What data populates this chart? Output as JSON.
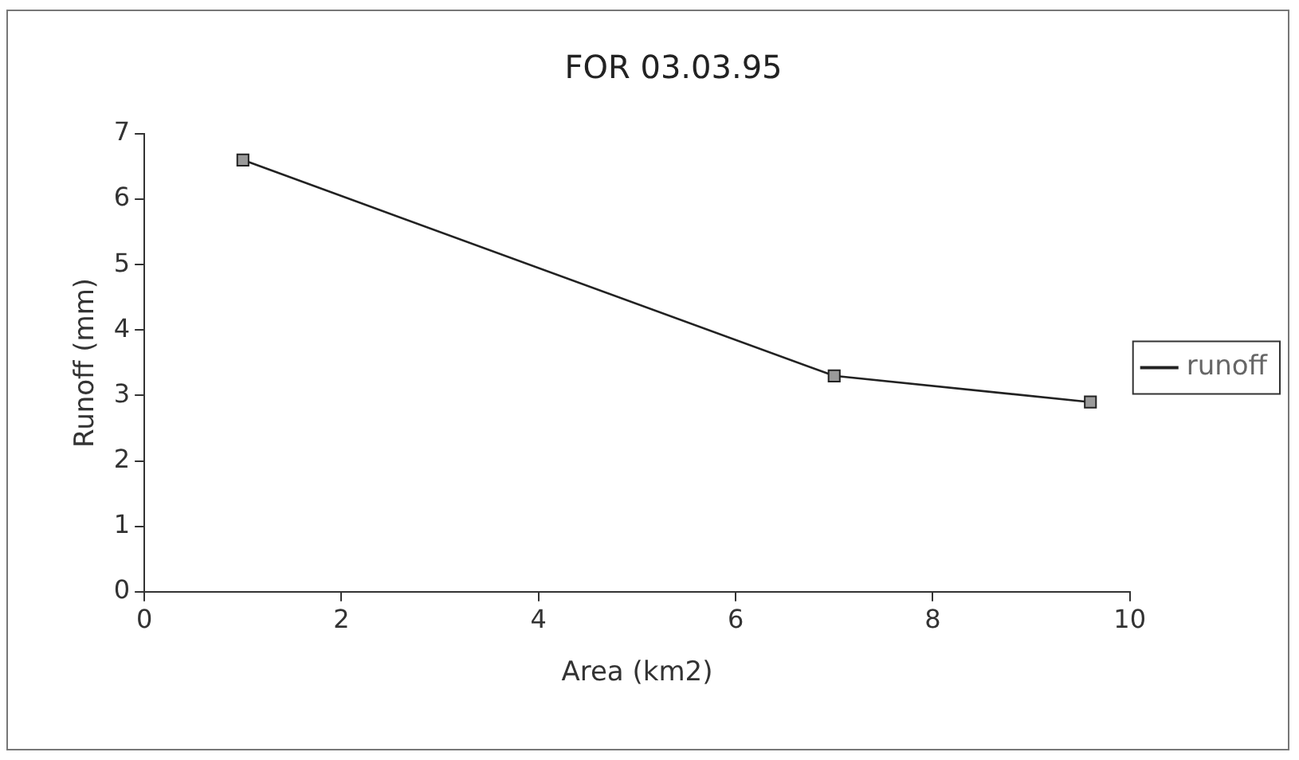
{
  "chart_data": {
    "type": "line",
    "title": "FOR 03.03.95",
    "xlabel": "Area (km2)",
    "ylabel": "Runoff (mm)",
    "x": [
      1,
      7,
      9.6
    ],
    "series": [
      {
        "name": "runoff",
        "color": "#222222",
        "values": [
          6.6,
          3.3,
          2.9
        ]
      }
    ],
    "xlim": [
      0,
      10
    ],
    "xticks": [
      0,
      2,
      4,
      6,
      8,
      10
    ],
    "ylim": [
      0,
      7
    ],
    "yticks": [
      0,
      1,
      2,
      3,
      4,
      5,
      6,
      7
    ],
    "grid": false,
    "legend": "right",
    "marker": "square",
    "line_style": "solid"
  }
}
